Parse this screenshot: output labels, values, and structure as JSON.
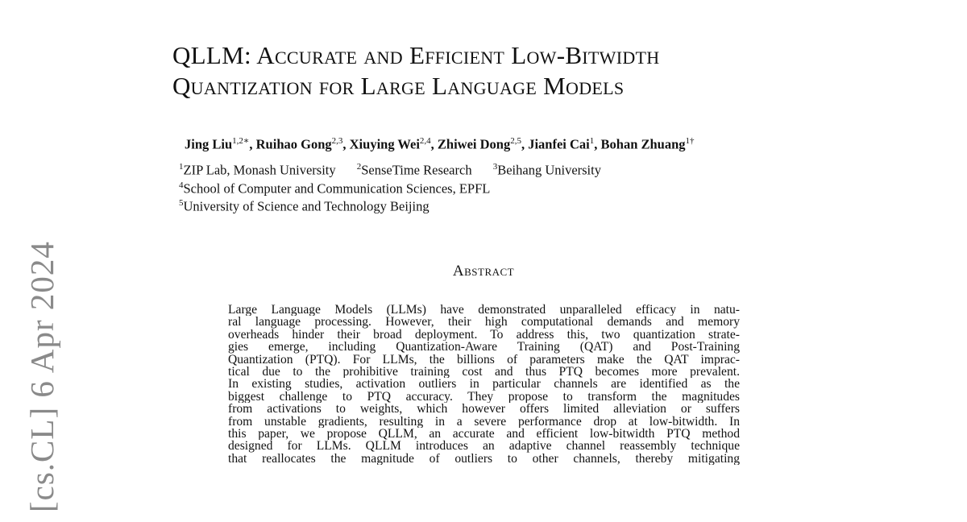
{
  "title": {
    "line1": "QLLM: Accurate and Efficient Low-Bitwidth",
    "line2": "Quantization for Large Language Models"
  },
  "authors": [
    {
      "name": "Jing Liu",
      "sup": "1,2",
      "mark": "∗"
    },
    {
      "name": "Ruihao Gong",
      "sup": "2,3"
    },
    {
      "name": "Xiuying Wei",
      "sup": "2,4"
    },
    {
      "name": "Zhiwei Dong",
      "sup": "2,5"
    },
    {
      "name": "Jianfei Cai",
      "sup": "1"
    },
    {
      "name": "Bohan Zhuang",
      "sup": "1†"
    }
  ],
  "affiliations": [
    {
      "sup": "1",
      "text": "ZIP Lab, Monash University"
    },
    {
      "sup": "2",
      "text": "SenseTime Research"
    },
    {
      "sup": "3",
      "text": "Beihang University"
    },
    {
      "sup": "4",
      "text": "School of Computer and Communication Sciences, EPFL"
    },
    {
      "sup": "5",
      "text": "University of Science and Technology Beijing"
    }
  ],
  "abstract_heading": "Abstract",
  "abstract_lines": [
    "Large Language Models (LLMs) have demonstrated unparalleled efficacy in natu-",
    "ral language processing. However, their high computational demands and memory",
    "overheads hinder their broad deployment. To address this, two quantization strate-",
    "gies emerge, including Quantization-Aware Training (QAT) and Post-Training",
    "Quantization (PTQ). For LLMs, the billions of parameters make the QAT imprac-",
    "tical due to the prohibitive training cost and thus PTQ becomes more prevalent.",
    "In existing studies, activation outliers in particular channels are identified as the",
    "biggest challenge to PTQ accuracy. They propose to transform the magnitudes",
    "from activations to weights, which however offers limited alleviation or suffers",
    "from unstable gradients, resulting in a severe performance drop at low-bitwidth. In",
    "this paper, we propose QLLM, an accurate and efficient low-bitwidth PTQ method",
    "designed for LLMs. QLLM introduces an adaptive channel reassembly technique",
    "that reallocates the magnitude of outliers to other channels, thereby mitigating"
  ],
  "arxiv_stamp": "[cs.CL]  6 Apr 2024"
}
